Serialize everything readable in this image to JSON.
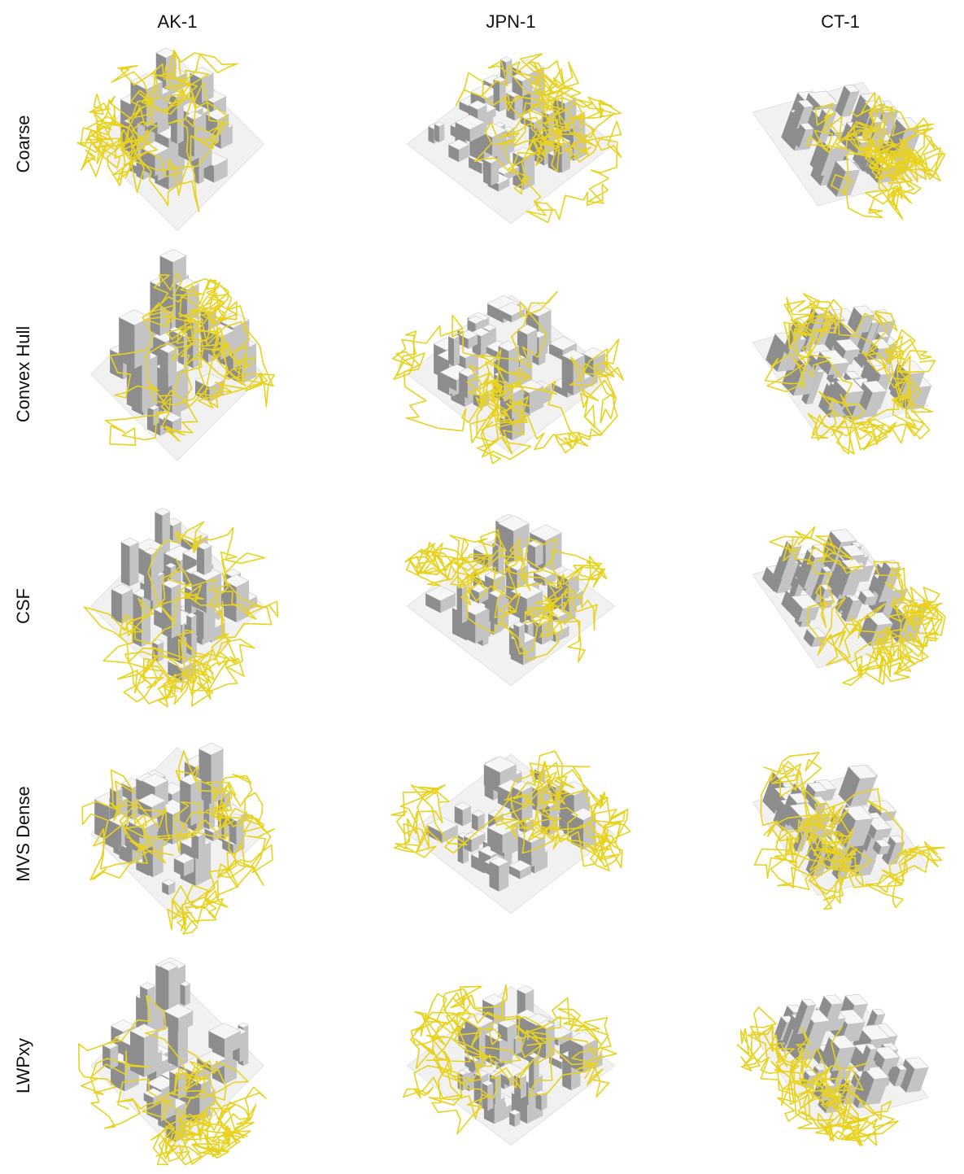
{
  "columns": [
    "AK-1",
    "JPN-1",
    "CT-1"
  ],
  "rows": [
    "Coarse",
    "Convex Hull",
    "CSF",
    "MVS Dense",
    "LWPxy"
  ]
}
